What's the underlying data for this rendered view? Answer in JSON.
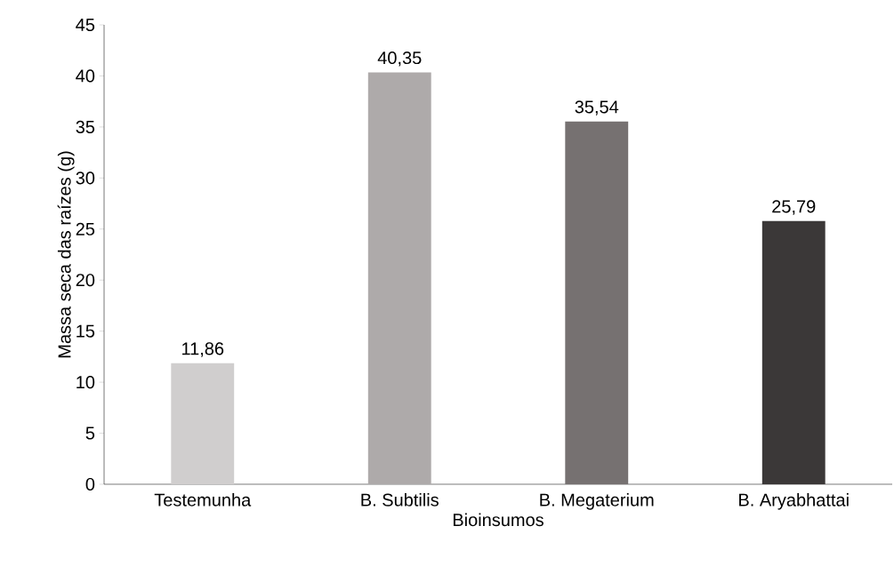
{
  "chart_data": {
    "type": "bar",
    "xlabel": "Bioinsumos",
    "ylabel": "Massa seca das raízes (g)",
    "categories": [
      "Testemunha",
      "B. Subtilis",
      "B. Megaterium",
      "B. Aryabhattai"
    ],
    "values": [
      11.86,
      40.35,
      35.54,
      25.79
    ],
    "colors": [
      "#d0cece",
      "#aeaaaa",
      "#767171",
      "#3b3838"
    ],
    "value_labels": [
      "11,86",
      "40,35",
      "35,54",
      "25,79"
    ],
    "ylim": [
      0,
      45
    ],
    "yticks": [
      0,
      5,
      10,
      15,
      20,
      25,
      30,
      35,
      40,
      45
    ],
    "grid": false
  }
}
